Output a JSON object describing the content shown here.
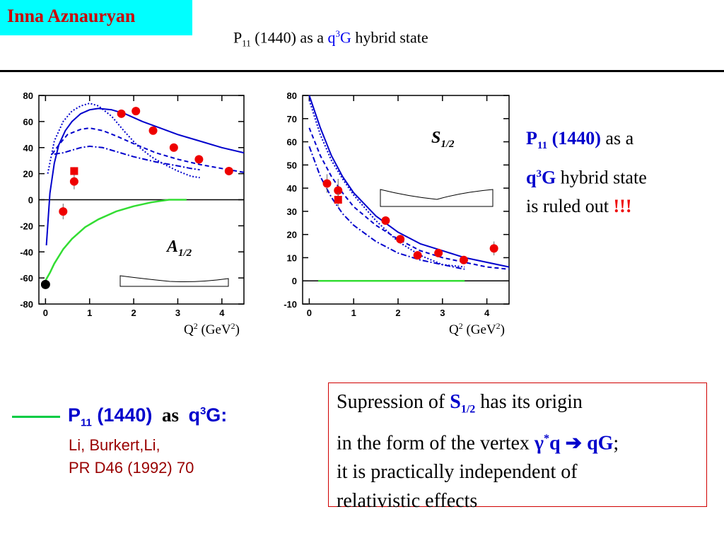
{
  "header": {
    "author": "Inna Aznauryan",
    "title_p": "P",
    "title_sub": "11",
    "title_mid": " (1440) as a ",
    "title_q": "q",
    "title_sup": "3",
    "title_g": "G",
    "title_end": " hybrid state"
  },
  "conclusion": {
    "l1_p": "P",
    "l1_sub": "11",
    "l1_b": " (1440)",
    "l1_tail": "  as a",
    "l2_q": "q",
    "l2_sup": "3",
    "l2_g": "G",
    "l2_tail": " hybrid state",
    "l3_text": "is ruled out ",
    "l3_excl": "!!!"
  },
  "legend": {
    "p": "P",
    "sub": "11",
    "mid": " (1440)",
    "as": "as",
    "q": "q",
    "sup": "3",
    "g": "G:",
    "ref1": "Li, Burkert,Li,",
    "ref2": "PR D46 (1992) 70",
    "line_color": "#00cc44"
  },
  "note": {
    "l1_a": "Supression of ",
    "l1_s": "S",
    "l1_sub": "1/2",
    "l1_b": " has its origin",
    "l2_a": "in the form of the vertex ",
    "l2_gamma": "γ",
    "l2_star": "*",
    "l2_q": "q ",
    "l2_arrow": "➔",
    "l2_qg": " qG",
    "l2_end": ";",
    "l3": "it is practically independent of",
    "l4": "relativistic effects"
  },
  "colors": {
    "data_points": "#ee0000",
    "model_curves": "#0000cc",
    "hybrid_curve": "#33dd33"
  },
  "chart_data": [
    {
      "type": "scatter",
      "label": "A",
      "label_sub": "1/2",
      "xlabel": "Q",
      "xlabel_sup": "2",
      "xlabel_unit": " (GeV",
      "xlabel_unit_sup": "2",
      "xlabel_close": ")",
      "xlim": [
        -0.15,
        4.5
      ],
      "ylim": [
        -80,
        80
      ],
      "xticks": [
        0,
        1,
        2,
        3,
        4
      ],
      "yticks": [
        -80,
        -60,
        -40,
        -20,
        0,
        20,
        40,
        60,
        80
      ],
      "points_circle": [
        {
          "x": 0.4,
          "y": -9,
          "err": 6
        },
        {
          "x": 0.65,
          "y": 14,
          "err": 6
        },
        {
          "x": 1.72,
          "y": 66,
          "err": 2
        },
        {
          "x": 2.05,
          "y": 68,
          "err": 2
        },
        {
          "x": 2.44,
          "y": 53,
          "err": 2
        },
        {
          "x": 2.91,
          "y": 40,
          "err": 2
        },
        {
          "x": 3.48,
          "y": 31,
          "err": 2
        },
        {
          "x": 4.16,
          "y": 22,
          "err": 2
        }
      ],
      "points_square": [
        {
          "x": 0.65,
          "y": 22,
          "err": 3
        }
      ],
      "point_black": {
        "x": 0.0,
        "y": -65
      },
      "series": [
        {
          "style": "solid",
          "color": "#0000cc",
          "x": [
            0.02,
            0.1,
            0.2,
            0.3,
            0.45,
            0.6,
            0.8,
            1.0,
            1.2,
            1.5,
            1.8,
            2.2,
            2.6,
            3.0,
            3.5,
            4.0,
            4.5
          ],
          "y": [
            -35,
            5,
            28,
            42,
            53,
            60,
            66,
            69,
            70,
            69,
            66,
            60,
            55,
            50,
            45,
            40,
            36
          ]
        },
        {
          "style": "dotted",
          "color": "#0000cc",
          "x": [
            0.05,
            0.2,
            0.4,
            0.6,
            0.8,
            1.0,
            1.2,
            1.5,
            1.8,
            2.1,
            2.4,
            2.7,
            3.0,
            3.3,
            3.5
          ],
          "y": [
            20,
            45,
            60,
            68,
            72,
            74,
            72,
            64,
            52,
            41,
            33,
            27,
            22,
            18,
            17
          ]
        },
        {
          "style": "dashed",
          "color": "#0000cc",
          "x": [
            0.15,
            0.3,
            0.5,
            0.8,
            1.0,
            1.3,
            1.6,
            2.0,
            2.5,
            3.0,
            3.5,
            4.0,
            4.5
          ],
          "y": [
            35,
            42,
            50,
            54,
            55,
            53,
            49,
            43,
            36,
            31,
            27,
            24,
            21
          ]
        },
        {
          "style": "dashdot",
          "color": "#0000cc",
          "x": [
            0.2,
            0.4,
            0.6,
            0.8,
            1.0,
            1.3,
            1.6,
            2.0,
            2.5,
            3.0,
            3.3,
            3.5
          ],
          "y": [
            35,
            36,
            38,
            40,
            41,
            40,
            37,
            33,
            29,
            26,
            24,
            23
          ]
        },
        {
          "style": "solid",
          "color": "#33dd33",
          "x": [
            0.0,
            0.1,
            0.2,
            0.4,
            0.6,
            0.9,
            1.2,
            1.6,
            2.0,
            2.4,
            2.8,
            3.2
          ],
          "y": [
            -62,
            -56,
            -49,
            -38,
            -30,
            -21,
            -15,
            -9,
            -5,
            -2,
            0,
            0
          ]
        }
      ]
    },
    {
      "type": "scatter",
      "label": "S",
      "label_sub": "1/2",
      "xlabel": "Q",
      "xlabel_sup": "2",
      "xlabel_unit": " (GeV",
      "xlabel_unit_sup": "2",
      "xlabel_close": ")",
      "xlim": [
        -0.15,
        4.5
      ],
      "ylim": [
        -10,
        80
      ],
      "xticks": [
        0,
        1,
        2,
        3,
        4
      ],
      "yticks": [
        -10,
        0,
        10,
        20,
        30,
        40,
        50,
        60,
        70,
        80
      ],
      "points_circle": [
        {
          "x": 0.4,
          "y": 42,
          "err": 4
        },
        {
          "x": 0.65,
          "y": 39,
          "err": 5
        },
        {
          "x": 1.72,
          "y": 26,
          "err": 1.5
        },
        {
          "x": 2.05,
          "y": 18,
          "err": 1.5
        },
        {
          "x": 2.44,
          "y": 11,
          "err": 1.5
        },
        {
          "x": 2.91,
          "y": 12,
          "err": 1.5
        },
        {
          "x": 3.48,
          "y": 9,
          "err": 1.5
        },
        {
          "x": 4.16,
          "y": 14,
          "err": 3
        }
      ],
      "points_square": [
        {
          "x": 0.65,
          "y": 35,
          "err": 3
        }
      ],
      "series": [
        {
          "style": "solid",
          "color": "#0000cc",
          "x": [
            0,
            0.25,
            0.5,
            0.75,
            1.0,
            1.5,
            2.0,
            2.5,
            3.0,
            3.5,
            4.0,
            4.5
          ],
          "y": [
            80,
            66,
            54,
            45,
            38,
            28,
            21,
            16,
            13,
            10,
            8,
            6
          ]
        },
        {
          "style": "dotted",
          "color": "#0000cc",
          "x": [
            0,
            0.25,
            0.5,
            0.75,
            1.0,
            1.5,
            2.0,
            2.5,
            3.0,
            3.5
          ],
          "y": [
            78,
            63,
            52,
            44,
            37,
            26,
            17,
            11,
            7,
            6
          ]
        },
        {
          "style": "dashed",
          "color": "#0000cc",
          "x": [
            0,
            0.25,
            0.5,
            0.75,
            1.0,
            1.5,
            2.0,
            2.5,
            3.0,
            3.5,
            4.0,
            4.5
          ],
          "y": [
            66,
            54,
            45,
            38,
            32,
            24,
            18,
            13,
            10,
            8,
            6,
            5
          ]
        },
        {
          "style": "dashdot",
          "color": "#0000cc",
          "x": [
            0,
            0.25,
            0.5,
            0.75,
            1.0,
            1.5,
            2.0,
            2.5,
            3.0,
            3.5
          ],
          "y": [
            58,
            45,
            36,
            29,
            24,
            17,
            12,
            9,
            7,
            5
          ]
        },
        {
          "style": "solid",
          "color": "#33dd33",
          "x": [
            0.2,
            3.5
          ],
          "y": [
            0,
            0
          ]
        }
      ]
    }
  ]
}
